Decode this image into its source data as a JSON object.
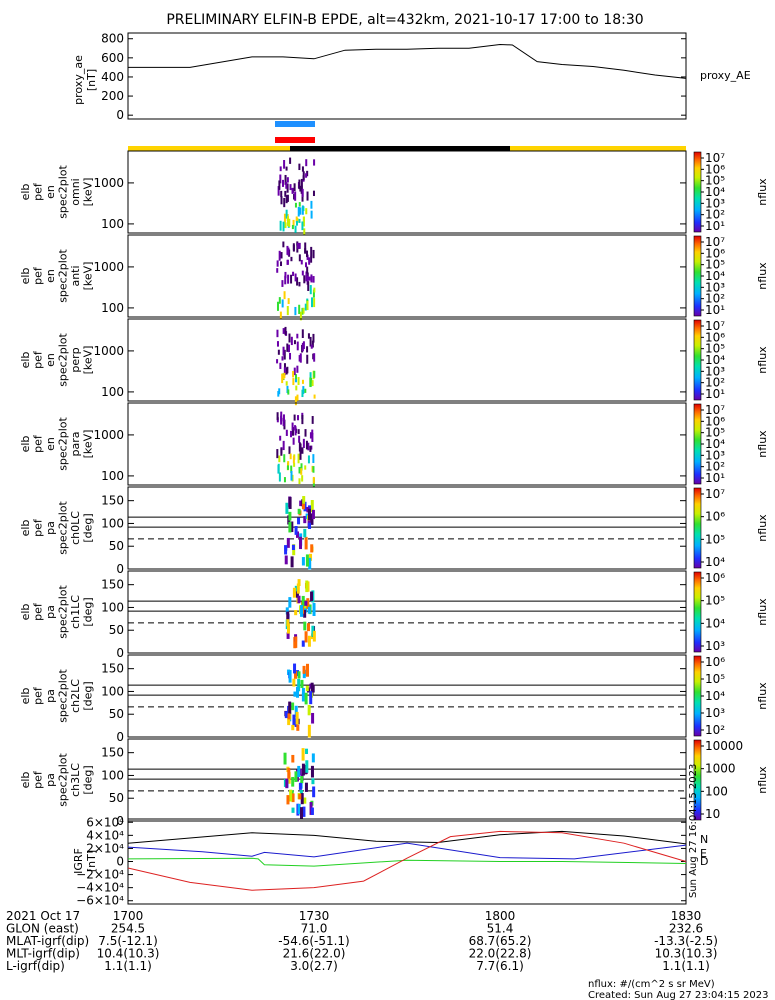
{
  "title": "PRELIMINARY ELFIN-B EPDE, alt=432km, 2021-10-17 17:00 to 18:30",
  "colors": {
    "ae_line": "#000000",
    "lc_bar_blue": "#1e90ff",
    "lc_bar_red": "#ff0000",
    "status_yellow": "#ffd400",
    "status_black": "#000000",
    "grf_black": "#000000",
    "grf_blue": "#1a1acd",
    "grf_green": "#22d022",
    "grf_red": "#dd2222"
  },
  "chart_data": [
    {
      "name": "proxy_ae",
      "type": "line",
      "ylabel": [
        "proxy_ae",
        "[nT]"
      ],
      "legend": "proxy_AE",
      "ylim": [
        -40,
        860
      ],
      "yticks": [
        "800",
        "600",
        "400",
        "200",
        "0"
      ],
      "ytick_values": [
        800,
        600,
        400,
        200,
        0
      ],
      "x_minutes": [
        0,
        10,
        20,
        25,
        30,
        35,
        40,
        45,
        50,
        55,
        60,
        62,
        66,
        70,
        75,
        80,
        85,
        90
      ],
      "values": [
        500,
        500,
        610,
        610,
        590,
        680,
        690,
        690,
        700,
        700,
        740,
        735,
        560,
        530,
        510,
        470,
        420,
        385
      ]
    },
    {
      "name": "en_spectrograms",
      "type": "heatmap",
      "yscale": "log",
      "ylim": [
        60,
        6000
      ],
      "yticks": [
        "1000",
        "100"
      ],
      "panels": [
        {
          "ylabel": [
            "elb",
            "pef",
            "en",
            "spec2plot",
            "omni",
            "[keV]"
          ]
        },
        {
          "ylabel": [
            "elb",
            "pef",
            "en",
            "spec2plot",
            "anti",
            "[keV]"
          ]
        },
        {
          "ylabel": [
            "elb",
            "pef",
            "en",
            "spec2plot",
            "perp",
            "[keV]"
          ]
        },
        {
          "ylabel": [
            "elb",
            "pef",
            "en",
            "spec2plot",
            "para",
            "[keV]"
          ]
        }
      ]
    },
    {
      "name": "pa_spectrograms",
      "type": "heatmap",
      "ylim": [
        0,
        180
      ],
      "yticks": [
        "150",
        "100",
        "50",
        "0"
      ],
      "ytick_values": [
        150,
        100,
        50,
        0
      ],
      "reference_lines_deg": [
        114,
        92
      ],
      "dashed_line_deg": 66,
      "panels": [
        {
          "ylabel": [
            "elb",
            "pef",
            "pa",
            "spec2plot",
            "ch0LC",
            "[deg]"
          ]
        },
        {
          "ylabel": [
            "elb",
            "pef",
            "pa",
            "spec2plot",
            "ch1LC",
            "[deg]"
          ]
        },
        {
          "ylabel": [
            "elb",
            "pef",
            "pa",
            "spec2plot",
            "ch2LC",
            "[deg]"
          ]
        },
        {
          "ylabel": [
            "elb",
            "pef",
            "pa",
            "spec2plot",
            "ch3LC",
            "[deg]"
          ]
        }
      ]
    },
    {
      "name": "igrf_field",
      "type": "line",
      "ylabel": [
        "IGRF",
        "[nT]"
      ],
      "ylim": [
        -65000,
        65000
      ],
      "yticks": [
        "6×10⁴",
        "4×10⁴",
        "2×10⁴",
        "0",
        "−2×10⁴",
        "−4×10⁴",
        "−6×10⁴"
      ],
      "ytick_values": [
        60000,
        40000,
        20000,
        0,
        -20000,
        -40000,
        -60000
      ],
      "legend": [
        "N",
        "E",
        "D"
      ],
      "series": [
        {
          "name": "N",
          "x_minutes": [
            0,
            10,
            20,
            30,
            40,
            50,
            60,
            70,
            80,
            90
          ],
          "values": [
            28000,
            36000,
            44000,
            40000,
            31000,
            29000,
            41000,
            46000,
            39000,
            27000
          ]
        },
        {
          "name": "E",
          "x_minutes": [
            0,
            12,
            20,
            22,
            30,
            45,
            60,
            72,
            90
          ],
          "values": [
            22000,
            15000,
            8000,
            14000,
            7000,
            28000,
            6000,
            4000,
            25000
          ]
        },
        {
          "name": "D",
          "x_minutes": [
            0,
            20,
            21,
            22,
            30,
            45,
            60,
            70,
            90
          ],
          "values": [
            4000,
            5000,
            4000,
            -5000,
            -7000,
            2000,
            0,
            0,
            -3000
          ]
        },
        {
          "name": "",
          "x_minutes": [
            0,
            10,
            20,
            30,
            38,
            45,
            52,
            60,
            70,
            80,
            90
          ],
          "values": [
            -10000,
            -32000,
            -44000,
            -40000,
            -30000,
            5000,
            38000,
            46000,
            44000,
            28000,
            0
          ]
        }
      ]
    }
  ],
  "colorbars": [
    {
      "labels": [
        "10⁷",
        "10⁶",
        "10⁵",
        "10⁴",
        "10³",
        "10²",
        "10¹"
      ],
      "unit": "nflux"
    },
    {
      "labels": [
        "10⁷",
        "10⁶",
        "10⁵",
        "10⁴",
        "10³",
        "10²",
        "10¹"
      ],
      "unit": "nflux"
    },
    {
      "labels": [
        "10⁷",
        "10⁶",
        "10⁵",
        "10⁴",
        "10³",
        "10²",
        "10¹"
      ],
      "unit": "nflux"
    },
    {
      "labels": [
        "10⁷",
        "10⁶",
        "10⁵",
        "10⁴",
        "10³",
        "10²",
        "10¹"
      ],
      "unit": "nflux"
    },
    {
      "labels": [
        "10⁷",
        "10⁶",
        "10⁵",
        "10⁴"
      ],
      "unit": "nflux"
    },
    {
      "labels": [
        "10⁶",
        "10⁵",
        "10⁴",
        "10³"
      ],
      "unit": "nflux"
    },
    {
      "labels": [
        "10⁶",
        "10⁵",
        "10⁴",
        "10³",
        "10²"
      ],
      "unit": "nflux"
    },
    {
      "labels": [
        "10000",
        "1000",
        "100",
        "10"
      ],
      "unit": "nflux"
    }
  ],
  "timestamp_vertical": "Sun Aug 27 16:04:15 2023",
  "footer": {
    "rows": [
      {
        "label": "2021 Oct 17",
        "values": [
          "1700",
          "1730",
          "1800",
          "1830"
        ]
      },
      {
        "label": "GLON (east)",
        "values": [
          "254.5",
          "71.0",
          "51.4",
          "232.6"
        ]
      },
      {
        "label": "MLAT-igrf(dip)",
        "values": [
          "7.5(-12.1)",
          "-54.6(-51.1)",
          "68.7(65.2)",
          "-13.3(-2.5)"
        ]
      },
      {
        "label": "MLT-igrf(dip)",
        "values": [
          "10.4(10.3)",
          "21.6(22.0)",
          "22.0(22.8)",
          "10.3(10.3)"
        ]
      },
      {
        "label": "L-igrf(dip)",
        "values": [
          "1.1(1.1)",
          "3.0(2.7)",
          "7.7(6.1)",
          "1.1(1.1)"
        ]
      }
    ],
    "units_note": "nflux: #/(cm^2 s sr MeV)",
    "created": "Created: Sun Aug 27 23:04:15 2023"
  }
}
